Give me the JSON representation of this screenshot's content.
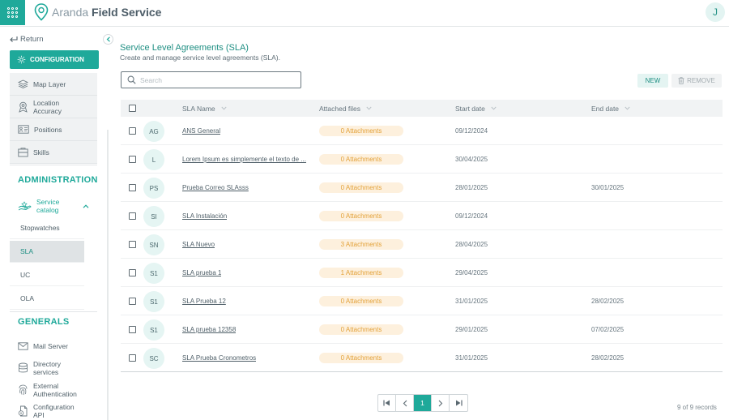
{
  "header": {
    "brand_light": "Aranda",
    "brand_bold": "Field Service",
    "user_initial": "J",
    "accent": "#1fa99a"
  },
  "sidebar": {
    "return_label": "Return",
    "config_label": "CONFIGURATION",
    "config_items": [
      {
        "label": "Map Layer",
        "icon": "map-layer-icon"
      },
      {
        "label": "Location Accuracy",
        "icon": "location-icon"
      },
      {
        "label": "Positions",
        "icon": "positions-icon"
      },
      {
        "label": "Skills",
        "icon": "skills-icon"
      }
    ],
    "admin_title": "ADMINISTRATION",
    "service_catalog_label": "Service catalog",
    "catalog_items": [
      "Stopwatches",
      "SLA",
      "UC",
      "OLA"
    ],
    "active_catalog_item": "SLA",
    "generals_title": "GENERALS",
    "general_items": [
      {
        "label": "Mail Server",
        "icon": "mail-icon"
      },
      {
        "label": "Directory services",
        "icon": "directory-icon"
      },
      {
        "label": "External Authentication",
        "icon": "fingerprint-icon"
      },
      {
        "label": "Configuration API",
        "icon": "api-icon"
      }
    ]
  },
  "main": {
    "title": "Service Level Agreements (SLA)",
    "subtitle": "Create and manage service level agreements (SLA).",
    "search_placeholder": "Search",
    "new_label": "NEW",
    "remove_label": "REMOVE",
    "columns": [
      "SLA Name",
      "Attached files",
      "Start date",
      "End date"
    ],
    "rows": [
      {
        "initials": "AG",
        "name": "ANS General",
        "attachments": "0 Attachments",
        "start": "09/12/2024",
        "end": ""
      },
      {
        "initials": "L",
        "name": "Lorem Ipsum es simplemente el texto de ...",
        "attachments": "0 Attachments",
        "start": "30/04/2025",
        "end": ""
      },
      {
        "initials": "PS",
        "name": "Prueba Correo SLAsss",
        "attachments": "0 Attachments",
        "start": "28/01/2025",
        "end": "30/01/2025"
      },
      {
        "initials": "SI",
        "name": "SLA Instalación",
        "attachments": "0 Attachments",
        "start": "09/12/2024",
        "end": ""
      },
      {
        "initials": "SN",
        "name": "SLA Nuevo",
        "attachments": "3 Attachments",
        "start": "28/04/2025",
        "end": ""
      },
      {
        "initials": "S1",
        "name": "SLA prueba 1",
        "attachments": "1 Attachments",
        "start": "29/04/2025",
        "end": ""
      },
      {
        "initials": "S1",
        "name": "SLA Prueba 12",
        "attachments": "0 Attachments",
        "start": "31/01/2025",
        "end": "28/02/2025"
      },
      {
        "initials": "S1",
        "name": "SLA prueba 12358",
        "attachments": "0 Attachments",
        "start": "29/01/2025",
        "end": "07/02/2025"
      },
      {
        "initials": "SC",
        "name": "SLA Prueba Cronometros",
        "attachments": "0 Attachments",
        "start": "31/01/2025",
        "end": "28/02/2025"
      }
    ],
    "current_page": "1",
    "records_text": "9 of 9 records"
  }
}
